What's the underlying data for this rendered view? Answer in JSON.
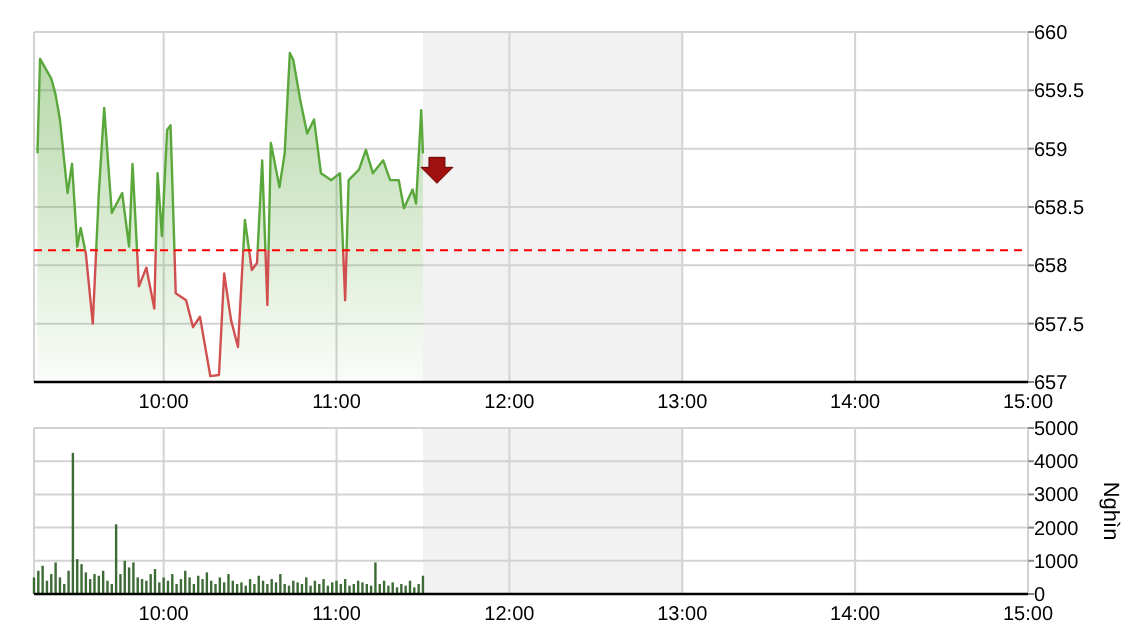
{
  "chart_data": [
    {
      "type": "area",
      "xlim": [
        9.25,
        15
      ],
      "ylim": [
        657,
        660
      ],
      "xticks": [
        {
          "value": 10,
          "label": "10:00"
        },
        {
          "value": 11,
          "label": "11:00"
        },
        {
          "value": 12,
          "label": "12:00"
        },
        {
          "value": 13,
          "label": "13:00"
        },
        {
          "value": 14,
          "label": "14:00"
        },
        {
          "value": 15,
          "label": "15:00"
        }
      ],
      "yticks": [
        657,
        657.5,
        658,
        658.5,
        659,
        659.5,
        660
      ],
      "grid": true,
      "ref_lines": [
        {
          "axis": "y",
          "value": 658.13,
          "color": "#ff0000",
          "line_style": "dashed"
        }
      ],
      "bands": [
        {
          "axis": "x",
          "from": 11.5,
          "to": 13,
          "color": "#f2f2f2"
        }
      ],
      "series": [
        {
          "color": "#5aa83c",
          "x": [
            9.27,
            9.285,
            9.35,
            9.374,
            9.4,
            9.444,
            9.47,
            9.5,
            9.52,
            9.55,
            9.59,
            9.625,
            9.656,
            9.7,
            9.76,
            9.8,
            9.82,
            9.857,
            9.9,
            9.946,
            9.965,
            9.99,
            10.02,
            10.04,
            10.07,
            10.13,
            10.17,
            10.21,
            10.27,
            10.32,
            10.35,
            10.39,
            10.43,
            10.47,
            10.51,
            10.54,
            10.57,
            10.6,
            10.62,
            10.67,
            10.7,
            10.73,
            10.75,
            10.79,
            10.83,
            10.87,
            10.91,
            10.97,
            11.02,
            11.05,
            11.07,
            11.13,
            11.17,
            11.21,
            11.27,
            11.31,
            11.36,
            11.39,
            11.44,
            11.46,
            11.49,
            11.5
          ],
          "values": [
            658.96,
            659.77,
            659.6,
            659.47,
            659.25,
            658.62,
            658.87,
            658.16,
            658.32,
            658.1,
            657.5,
            658.62,
            659.35,
            658.45,
            658.62,
            658.16,
            658.87,
            657.82,
            657.98,
            657.63,
            658.79,
            658.25,
            659.16,
            659.2,
            657.76,
            657.7,
            657.47,
            657.56,
            657.05,
            657.06,
            657.93,
            657.53,
            657.3,
            658.39,
            657.96,
            658.02,
            658.9,
            657.66,
            659.05,
            658.67,
            658.96,
            659.82,
            659.76,
            659.42,
            659.13,
            659.25,
            658.79,
            658.73,
            658.79,
            657.7,
            658.73,
            658.82,
            658.99,
            658.79,
            658.9,
            658.73,
            658.73,
            658.49,
            658.65,
            658.53,
            659.33,
            658.96
          ]
        }
      ]
    },
    {
      "type": "bar",
      "ylabel": "Nghìn",
      "xlim": [
        9.25,
        15
      ],
      "ylim": [
        0,
        5000
      ],
      "xticks": [
        {
          "value": 10,
          "label": "10:00"
        },
        {
          "value": 11,
          "label": "11:00"
        },
        {
          "value": 12,
          "label": "12:00"
        },
        {
          "value": 13,
          "label": "13:00"
        },
        {
          "value": 14,
          "label": "14:00"
        },
        {
          "value": 15,
          "label": "15:00"
        }
      ],
      "yticks": [
        0,
        1000,
        2000,
        3000,
        4000,
        5000
      ],
      "grid": true,
      "bands": [
        {
          "axis": "x",
          "from": 11.5,
          "to": 13,
          "color": "#f2f2f2"
        }
      ],
      "series": [
        {
          "color": "#3d6b35",
          "x": [
            9.25,
            9.275,
            9.3,
            9.325,
            9.35,
            9.375,
            9.4,
            9.425,
            9.45,
            9.475,
            9.5,
            9.525,
            9.55,
            9.575,
            9.6,
            9.625,
            9.65,
            9.675,
            9.7,
            9.725,
            9.75,
            9.775,
            9.8,
            9.825,
            9.85,
            9.875,
            9.9,
            9.925,
            9.95,
            9.975,
            10,
            10.025,
            10.05,
            10.075,
            10.1,
            10.125,
            10.15,
            10.175,
            10.2,
            10.225,
            10.25,
            10.275,
            10.3,
            10.325,
            10.35,
            10.375,
            10.4,
            10.425,
            10.45,
            10.475,
            10.5,
            10.525,
            10.55,
            10.575,
            10.6,
            10.625,
            10.65,
            10.675,
            10.7,
            10.725,
            10.75,
            10.775,
            10.8,
            10.825,
            10.85,
            10.875,
            10.9,
            10.925,
            10.95,
            10.975,
            11,
            11.025,
            11.05,
            11.075,
            11.1,
            11.125,
            11.15,
            11.175,
            11.2,
            11.225,
            11.25,
            11.275,
            11.3,
            11.325,
            11.35,
            11.375,
            11.4,
            11.425,
            11.45,
            11.475,
            11.5
          ],
          "values": [
            500,
            700,
            850,
            400,
            600,
            950,
            500,
            300,
            700,
            4250,
            1050,
            900,
            650,
            450,
            600,
            550,
            700,
            400,
            300,
            2100,
            600,
            1000,
            800,
            950,
            500,
            450,
            400,
            600,
            750,
            350,
            500,
            400,
            600,
            300,
            450,
            700,
            500,
            300,
            550,
            450,
            650,
            400,
            300,
            500,
            350,
            600,
            400,
            300,
            350,
            250,
            450,
            300,
            550,
            400,
            300,
            450,
            350,
            600,
            300,
            250,
            400,
            350,
            300,
            500,
            250,
            400,
            300,
            450,
            250,
            350,
            400,
            300,
            450,
            250,
            300,
            400,
            350,
            300,
            250,
            950,
            300,
            400,
            250,
            350,
            200,
            300,
            250,
            400,
            200,
            300,
            550
          ]
        }
      ]
    }
  ]
}
